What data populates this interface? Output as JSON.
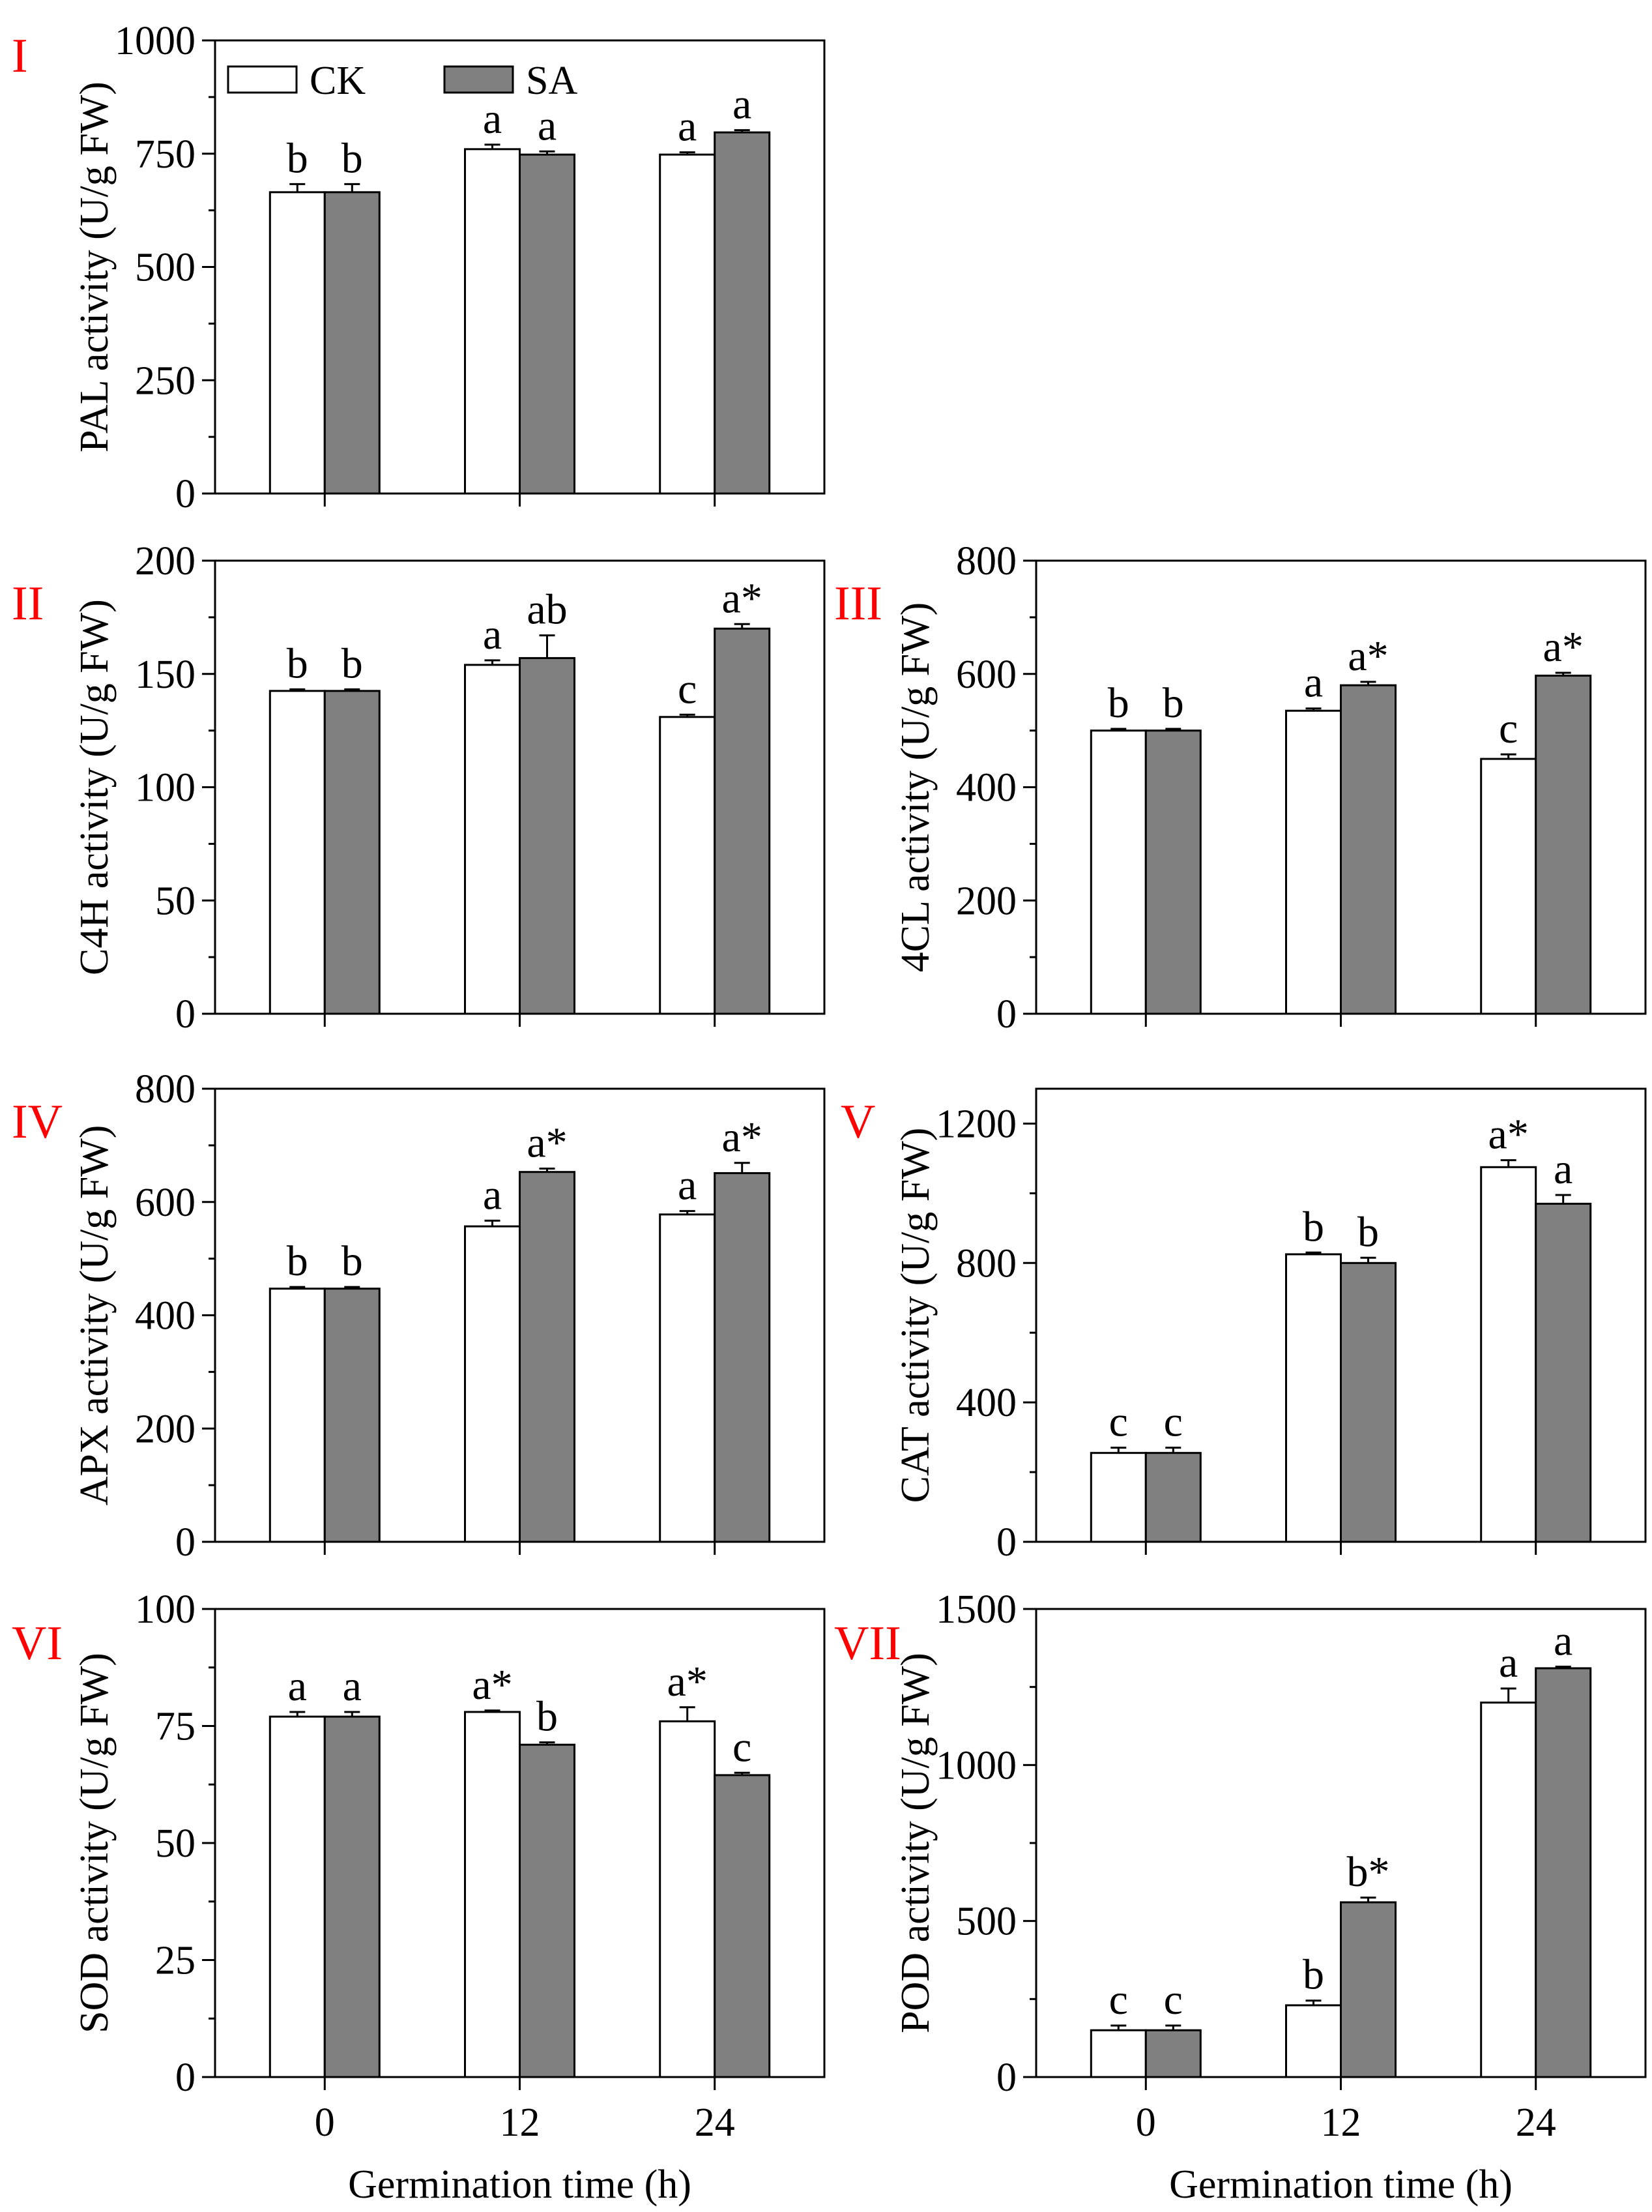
{
  "colors": {
    "ck_fill": "#ffffff",
    "sa_fill": "#808080",
    "panel_label": "#ff0000",
    "axis": "#000000"
  },
  "chart_data": [
    {
      "panel": "I",
      "type": "bar",
      "categories": [
        "0",
        "12",
        "24"
      ],
      "ylabel": "PAL activity (U/g FW)",
      "xlabel": "",
      "ylim": [
        0,
        1000
      ],
      "yticks": [
        0,
        250,
        500,
        750,
        1000
      ],
      "legend": [
        "CK",
        "SA"
      ],
      "series": [
        {
          "name": "CK",
          "values": [
            665,
            760,
            748
          ],
          "errors": [
            18,
            10,
            5
          ],
          "labels": [
            "b",
            "a",
            "a"
          ]
        },
        {
          "name": "SA",
          "values": [
            665,
            748,
            797
          ],
          "errors": [
            18,
            7,
            5
          ],
          "labels": [
            "b",
            "a",
            "a"
          ]
        }
      ]
    },
    {
      "panel": "II",
      "type": "bar",
      "categories": [
        "0",
        "12",
        "24"
      ],
      "ylabel": "C4H activity (U/g FW)",
      "xlabel": "",
      "ylim": [
        0,
        200
      ],
      "yticks": [
        0,
        50,
        100,
        150,
        200
      ],
      "series": [
        {
          "name": "CK",
          "values": [
            142.5,
            154,
            131
          ],
          "errors": [
            0.7,
            2,
            1
          ],
          "labels": [
            "b",
            "a",
            "c"
          ]
        },
        {
          "name": "SA",
          "values": [
            142.5,
            157,
            170
          ],
          "errors": [
            0.7,
            10,
            2
          ],
          "labels": [
            "b",
            "ab",
            "a*"
          ]
        }
      ]
    },
    {
      "panel": "III",
      "type": "bar",
      "categories": [
        "0",
        "12",
        "24"
      ],
      "ylabel": "4CL activity (U/g FW)",
      "xlabel": "",
      "ylim": [
        0,
        800
      ],
      "yticks": [
        0,
        200,
        400,
        600,
        800
      ],
      "series": [
        {
          "name": "CK",
          "values": [
            500,
            535,
            450
          ],
          "errors": [
            3,
            4,
            8
          ],
          "labels": [
            "b",
            "a",
            "c"
          ]
        },
        {
          "name": "SA",
          "values": [
            500,
            580,
            597
          ],
          "errors": [
            3,
            6,
            5
          ],
          "labels": [
            "b",
            "a*",
            "a*"
          ]
        }
      ]
    },
    {
      "panel": "IV",
      "type": "bar",
      "categories": [
        "0",
        "12",
        "24"
      ],
      "ylabel": "APX activity (U/g FW)",
      "xlabel": "",
      "ylim": [
        0,
        800
      ],
      "yticks": [
        0,
        200,
        400,
        600,
        800
      ],
      "series": [
        {
          "name": "CK",
          "values": [
            447,
            557,
            578
          ],
          "errors": [
            3,
            10,
            6
          ],
          "labels": [
            "b",
            "a",
            "a"
          ]
        },
        {
          "name": "SA",
          "values": [
            447,
            653,
            651
          ],
          "errors": [
            3,
            6,
            18
          ],
          "labels": [
            "b",
            "a*",
            "a*"
          ]
        }
      ]
    },
    {
      "panel": "V",
      "type": "bar",
      "categories": [
        "0",
        "12",
        "24"
      ],
      "ylabel": "CAT activity (U/g FW)",
      "xlabel": "",
      "ylim": [
        0,
        1300
      ],
      "yticks": [
        0,
        400,
        800,
        1200
      ],
      "series": [
        {
          "name": "CK",
          "values": [
            255,
            825,
            1075
          ],
          "errors": [
            15,
            5,
            20
          ],
          "labels": [
            "c",
            "b",
            "a*"
          ]
        },
        {
          "name": "SA",
          "values": [
            255,
            800,
            970
          ],
          "errors": [
            15,
            15,
            25
          ],
          "labels": [
            "c",
            "b",
            "a"
          ]
        }
      ]
    },
    {
      "panel": "VI",
      "type": "bar",
      "categories": [
        "0",
        "12",
        "24"
      ],
      "ylabel": "SOD activity (U/g FW)",
      "xlabel": "Germination time (h)",
      "ylim": [
        0,
        100
      ],
      "yticks": [
        0,
        25,
        50,
        75,
        100
      ],
      "series": [
        {
          "name": "CK",
          "values": [
            77,
            78,
            76
          ],
          "errors": [
            1,
            0.3,
            3
          ],
          "labels": [
            "a",
            "a*",
            "a*"
          ]
        },
        {
          "name": "SA",
          "values": [
            77,
            71,
            64.5
          ],
          "errors": [
            1,
            0.5,
            0.5
          ],
          "labels": [
            "a",
            "b",
            "c"
          ]
        }
      ]
    },
    {
      "panel": "VII",
      "type": "bar",
      "categories": [
        "0",
        "12",
        "24"
      ],
      "ylabel": "POD activity (U/g FW)",
      "xlabel": "Germination time (h)",
      "ylim": [
        0,
        1500
      ],
      "yticks": [
        0,
        500,
        1000,
        1500
      ],
      "series": [
        {
          "name": "CK",
          "values": [
            150,
            230,
            1200
          ],
          "errors": [
            15,
            15,
            45
          ],
          "labels": [
            "c",
            "b",
            "a"
          ]
        },
        {
          "name": "SA",
          "values": [
            150,
            560,
            1310
          ],
          "errors": [
            15,
            15,
            5
          ],
          "labels": [
            "c",
            "b*",
            "a"
          ]
        }
      ]
    }
  ]
}
